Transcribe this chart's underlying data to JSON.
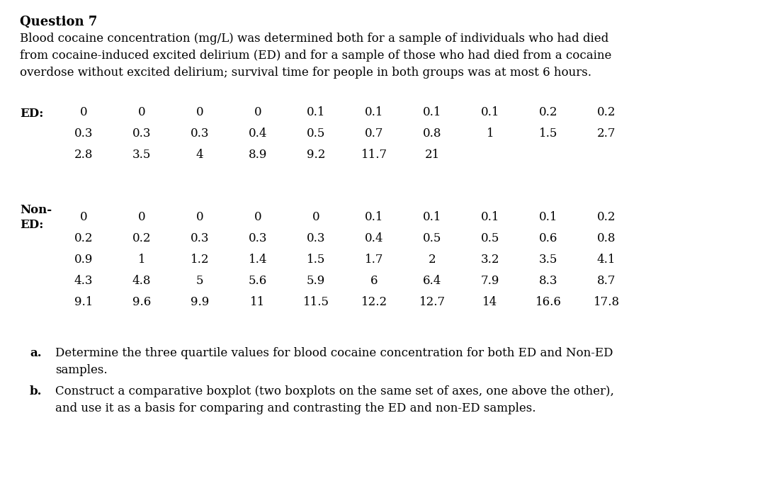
{
  "title_bold": "Question 7",
  "intro_lines": [
    "Blood cocaine concentration (mg/L) was determined both for a sample of individuals who had died",
    "from cocaine-induced excited delirium (ED) and for a sample of those who had died from a cocaine",
    "overdose without excited delirium; survival time for people in both groups was at most 6 hours."
  ],
  "ed_label": "ED:",
  "ed_row1": [
    "0",
    "0",
    "0",
    "0",
    "0.1",
    "0.1",
    "0.1",
    "0.1",
    "0.2",
    "0.2"
  ],
  "ed_row2": [
    "0.3",
    "0.3",
    "0.3",
    "0.4",
    "0.5",
    "0.7",
    "0.8",
    "1",
    "1.5",
    "2.7"
  ],
  "ed_row3": [
    "2.8",
    "3.5",
    "4",
    "8.9",
    "9.2",
    "11.7",
    "21"
  ],
  "noned_label1": "Non-",
  "noned_label2": "ED:",
  "noned_row1": [
    "0",
    "0",
    "0",
    "0",
    "0",
    "0.1",
    "0.1",
    "0.1",
    "0.1",
    "0.2"
  ],
  "noned_row2": [
    "0.2",
    "0.2",
    "0.3",
    "0.3",
    "0.3",
    "0.4",
    "0.5",
    "0.5",
    "0.6",
    "0.8"
  ],
  "noned_row3": [
    "0.9",
    "1",
    "1.2",
    "1.4",
    "1.5",
    "1.7",
    "2",
    "3.2",
    "3.5",
    "4.1"
  ],
  "noned_row4": [
    "4.3",
    "4.8",
    "5",
    "5.6",
    "5.9",
    "6",
    "6.4",
    "7.9",
    "8.3",
    "8.7"
  ],
  "noned_row5": [
    "9.1",
    "9.6",
    "9.9",
    "11",
    "11.5",
    "12.2",
    "12.7",
    "14",
    "16.6",
    "17.8"
  ],
  "part_a_label": "a.",
  "part_a_text1": "Determine the three quartile values for blood cocaine concentration for both ED and Non-ED",
  "part_a_text2": "samples.",
  "part_b_label": "b.",
  "part_b_text1": "Construct a comparative boxplot (two boxplots on the same set of axes, one above the other),",
  "part_b_text2": "and use it as a basis for comparing and contrasting the ED and non-ED samples.",
  "bg_color": "#ffffff",
  "text_color": "#000000",
  "font_size_title": 13,
  "font_size_body": 12,
  "font_size_data": 12
}
